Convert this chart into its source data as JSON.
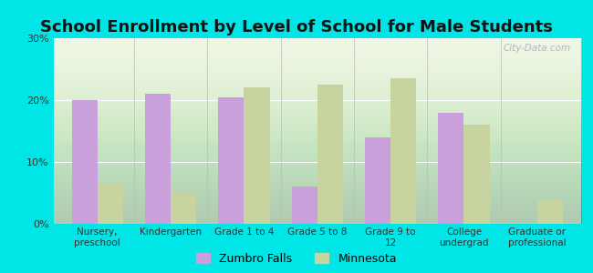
{
  "title": "School Enrollment by Level of School for Male Students",
  "categories": [
    "Nursery,\npreschool",
    "Kindergarten",
    "Grade 1 to 4",
    "Grade 5 to 8",
    "Grade 9 to\n12",
    "College\nundergrad",
    "Graduate or\nprofessional"
  ],
  "zumbro_falls": [
    20.0,
    21.0,
    20.5,
    6.0,
    14.0,
    18.0,
    0.0
  ],
  "minnesota": [
    6.5,
    5.0,
    22.0,
    22.5,
    23.5,
    16.0,
    4.0
  ],
  "zumbro_color": "#c9a0dc",
  "minnesota_color": "#c8d4a0",
  "background_color": "#00e5e5",
  "ylim": [
    0,
    30
  ],
  "yticks": [
    0,
    10,
    20,
    30
  ],
  "ytick_labels": [
    "0%",
    "10%",
    "20%",
    "30%"
  ],
  "title_fontsize": 13,
  "legend_labels": [
    "Zumbro Falls",
    "Minnesota"
  ],
  "bar_width": 0.35
}
